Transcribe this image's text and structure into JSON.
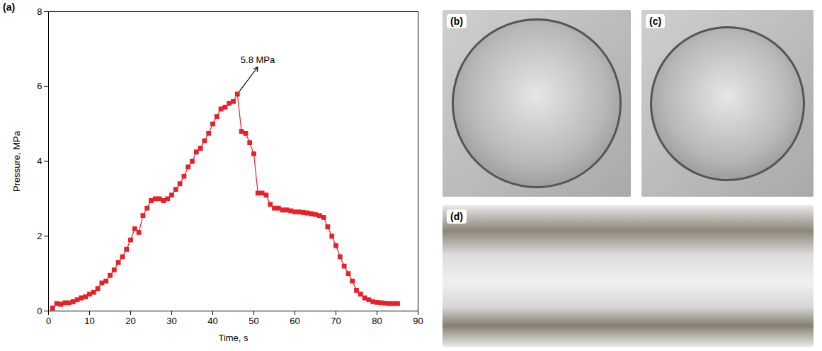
{
  "chart_data": {
    "type": "line",
    "panel_label": "(a)",
    "x_label": "Time, s",
    "y_label": "Pressure, MPa",
    "x": [
      1,
      2,
      3,
      4,
      5,
      6,
      7,
      8,
      9,
      10,
      11,
      12,
      13,
      14,
      15,
      16,
      17,
      18,
      19,
      20,
      21,
      22,
      23,
      24,
      25,
      26,
      27,
      28,
      29,
      30,
      31,
      32,
      33,
      34,
      35,
      36,
      37,
      38,
      39,
      40,
      41,
      42,
      43,
      44,
      45,
      46,
      47,
      48,
      49,
      50,
      51,
      52,
      53,
      54,
      55,
      56,
      57,
      58,
      59,
      60,
      61,
      62,
      63,
      64,
      65,
      66,
      67,
      68,
      69,
      70,
      71,
      72,
      73,
      74,
      75,
      76,
      77,
      78,
      79,
      80,
      81,
      82,
      83,
      84,
      85
    ],
    "values": [
      0.08,
      0.2,
      0.18,
      0.22,
      0.22,
      0.25,
      0.3,
      0.35,
      0.38,
      0.45,
      0.5,
      0.6,
      0.75,
      0.8,
      0.95,
      1.1,
      1.3,
      1.45,
      1.65,
      1.9,
      2.2,
      2.1,
      2.55,
      2.75,
      2.95,
      3.0,
      3.0,
      2.95,
      3.0,
      3.1,
      3.25,
      3.4,
      3.6,
      3.85,
      4.0,
      4.25,
      4.35,
      4.55,
      4.75,
      5.0,
      5.2,
      5.4,
      5.45,
      5.55,
      5.6,
      5.8,
      4.8,
      4.75,
      4.5,
      4.2,
      3.15,
      3.15,
      3.1,
      2.85,
      2.75,
      2.75,
      2.7,
      2.7,
      2.68,
      2.65,
      2.65,
      2.63,
      2.62,
      2.6,
      2.58,
      2.55,
      2.5,
      2.25,
      2.0,
      1.75,
      1.45,
      1.2,
      1.0,
      0.8,
      0.55,
      0.45,
      0.35,
      0.3,
      0.25,
      0.23,
      0.22,
      0.21,
      0.2,
      0.2,
      0.2
    ],
    "color": "#e8202a",
    "marker": "square",
    "line_style": "solid",
    "xlim": [
      0,
      90
    ],
    "xticks": [
      0,
      10,
      20,
      30,
      40,
      50,
      60,
      70,
      80,
      90
    ],
    "ylim": [
      0,
      8
    ],
    "yticks": [
      0,
      2,
      4,
      6,
      8
    ],
    "grid": false,
    "annotations": [
      {
        "text": "5.8 MPa",
        "x": 46,
        "y": 5.8
      }
    ]
  },
  "photos": [
    {
      "label": "(b)"
    },
    {
      "label": "(c)"
    },
    {
      "label": "(d)"
    }
  ]
}
